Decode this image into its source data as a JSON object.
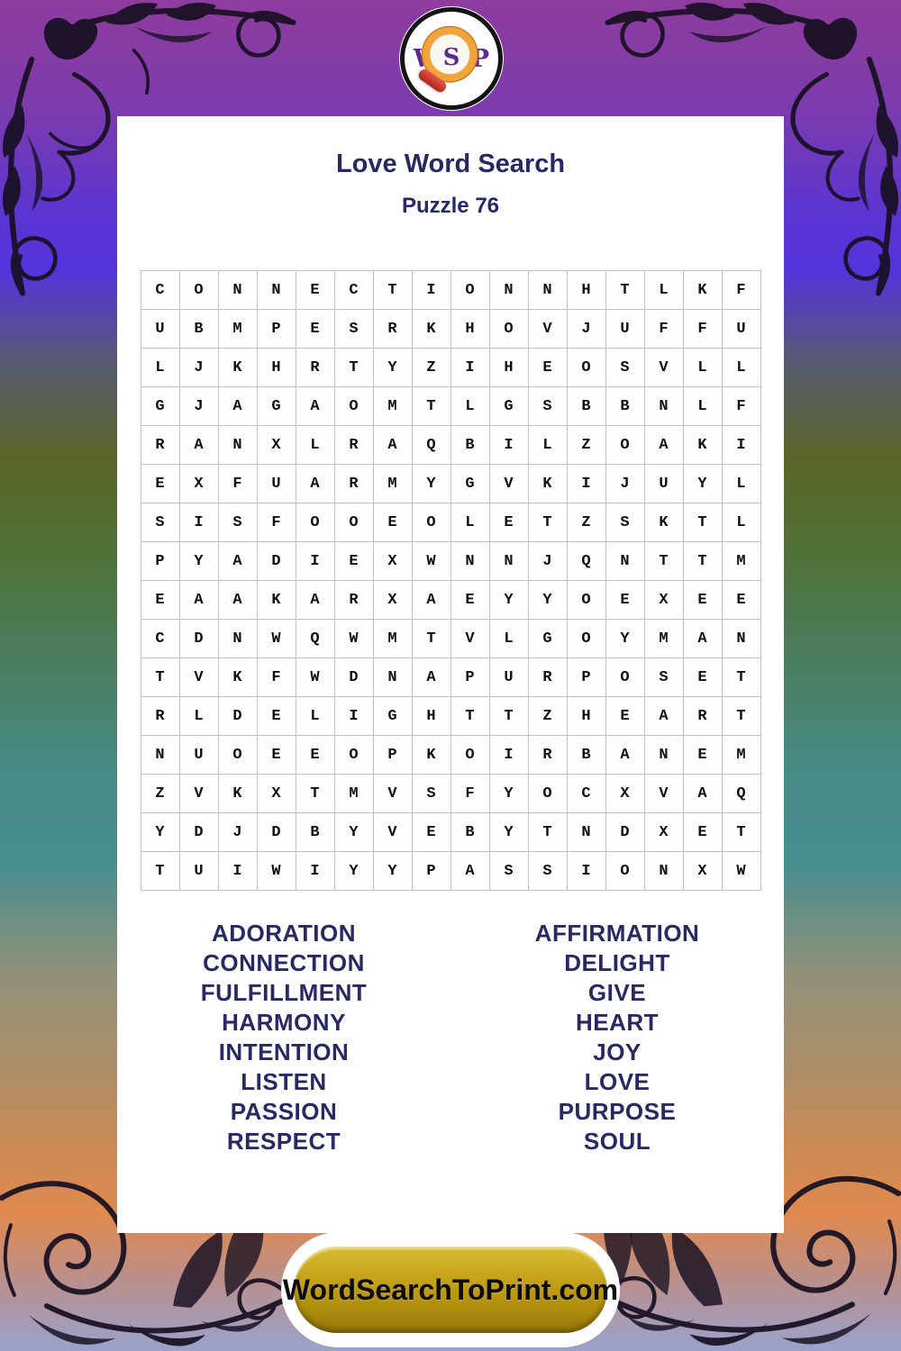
{
  "logo": {
    "letters": [
      "W",
      "S",
      "P"
    ],
    "letter_color": "#5c2b8d",
    "ring_color": "#131313",
    "magnifier_ring_color": "#f2a33c",
    "handle_color": "#c0291c"
  },
  "card": {
    "title": "Love Word Search",
    "subtitle": "Puzzle 76",
    "text_color": "#272a62"
  },
  "grid": {
    "size": 16,
    "rows": [
      "CONNECTIONNHTLKF",
      "UBMPESRKHOVJUFFU",
      "LJKHRTYZIHEOSVLL",
      "GJAGAOMTLGSBBNLF",
      "RANXLRAQBILZOAKI",
      "EXFUARMYGVKIJUYL",
      "SISFOOEOLETZSKTL",
      "PYADIEXWNNJQNTTM",
      "EAAKARXAEYYOEXEE",
      "CDNWQWMTVLGOYMAN",
      "TVKFWDNAPURPOSET",
      "RLDELIGHTTZHEART",
      "NUOEEOPKOIRBANEM",
      "ZVKXTMVSFYOCXVAQ",
      "YDJDBYVEBYTNDXET",
      "TUIWIYYPASSIONXW"
    ]
  },
  "words": {
    "left": [
      "ADORATION",
      "CONNECTION",
      "FULFILLMENT",
      "HARMONY",
      "INTENTION",
      "LISTEN",
      "PASSION",
      "RESPECT"
    ],
    "right": [
      "AFFIRMATION",
      "DELIGHT",
      "GIVE",
      "HEART",
      "JOY",
      "LOVE",
      "PURPOSE",
      "SOUL"
    ]
  },
  "footer": {
    "site_label": "WordSearchToPrint.com",
    "pill_gold": "#bb980f"
  },
  "background": {
    "top_color": "#8e3c9e",
    "violet": "#5433dc",
    "olive": "#5a6526",
    "teal": "#478e8e",
    "orange": "#e08a50",
    "bottom_lavender": "#99a3cd"
  }
}
